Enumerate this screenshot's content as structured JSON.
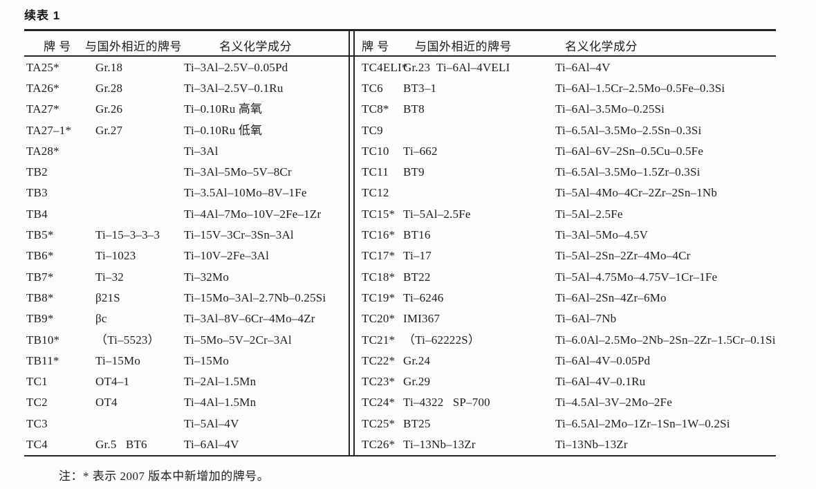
{
  "page": {
    "title": "续表 1",
    "note": "注：* 表示 2007 版本中新增加的牌号。"
  },
  "colors": {
    "paper": "#fdfdfc",
    "text": "#1c1c1c",
    "rule": "#232323"
  },
  "table": {
    "headers": {
      "grade": "牌 号",
      "foreign": "与国外相近的牌号",
      "composition": "名义化学成分"
    },
    "left_rows": [
      {
        "grade": "TA25*",
        "foreign": "Gr.18",
        "composition": "Ti–3Al–2.5V–0.05Pd"
      },
      {
        "grade": "TA26*",
        "foreign": "Gr.28",
        "composition": "Ti–3Al–2.5V–0.1Ru"
      },
      {
        "grade": "TA27*",
        "foreign": "Gr.26",
        "composition": "Ti–0.10Ru 高氧"
      },
      {
        "grade": "TA27–1*",
        "foreign": "Gr.27",
        "composition": "Ti–0.10Ru 低氧"
      },
      {
        "grade": "TA28*",
        "foreign": "",
        "composition": "Ti–3Al"
      },
      {
        "grade": "TB2",
        "foreign": "",
        "composition": "Ti–3Al–5Mo–5V–8Cr"
      },
      {
        "grade": "TB3",
        "foreign": "",
        "composition": "Ti–3.5Al–10Mo–8V–1Fe"
      },
      {
        "grade": "TB4",
        "foreign": "",
        "composition": "Ti–4Al–7Mo–10V–2Fe–1Zr"
      },
      {
        "grade": "TB5*",
        "foreign": "Ti–15–3–3–3",
        "composition": "Ti–15V–3Cr–3Sn–3Al"
      },
      {
        "grade": "TB6*",
        "foreign": "Ti–1023",
        "composition": "Ti–10V–2Fe–3Al"
      },
      {
        "grade": "TB7*",
        "foreign": "Ti–32",
        "composition": "Ti–32Mo"
      },
      {
        "grade": "TB8*",
        "foreign": "β21S",
        "composition": "Ti–15Mo–3Al–2.7Nb–0.25Si"
      },
      {
        "grade": "TB9*",
        "foreign": "βc",
        "composition": "Ti–3Al–8V–6Cr–4Mo–4Zr"
      },
      {
        "grade": "TB10*",
        "foreign": "（Ti–5523）",
        "composition": "Ti–5Mo–5V–2Cr–3Al"
      },
      {
        "grade": "TB11*",
        "foreign": "Ti–15Mo",
        "composition": "Ti–15Mo"
      },
      {
        "grade": "TC1",
        "foreign": "OT4–1",
        "composition": "Ti–2Al–1.5Mn"
      },
      {
        "grade": "TC2",
        "foreign": "OT4",
        "composition": "Ti–4Al–1.5Mn"
      },
      {
        "grade": "TC3",
        "foreign": "",
        "composition": "Ti–5Al–4V"
      },
      {
        "grade": "TC4",
        "foreign": "Gr.5   BT6",
        "composition": "Ti–6Al–4V"
      }
    ],
    "right_rows": [
      {
        "grade": "TC4ELI*",
        "foreign": "Gr.23  Ti–6Al–4VELI",
        "composition": "Ti–6Al–4V"
      },
      {
        "grade": "TC6",
        "foreign": "BT3–1",
        "composition": "Ti–6Al–1.5Cr–2.5Mo–0.5Fe–0.3Si"
      },
      {
        "grade": "TC8*",
        "foreign": "BT8",
        "composition": "Ti–6Al–3.5Mo–0.25Si"
      },
      {
        "grade": "TC9",
        "foreign": "",
        "composition": "Ti–6.5Al–3.5Mo–2.5Sn–0.3Si"
      },
      {
        "grade": "TC10",
        "foreign": "Ti–662",
        "composition": "Ti–6Al–6V–2Sn–0.5Cu–0.5Fe"
      },
      {
        "grade": "TC11",
        "foreign": "BT9",
        "composition": "Ti–6.5Al–3.5Mo–1.5Zr–0.3Si"
      },
      {
        "grade": "TC12",
        "foreign": "",
        "composition": "Ti–5Al–4Mo–4Cr–2Zr–2Sn–1Nb"
      },
      {
        "grade": "TC15*",
        "foreign": "Ti–5Al–2.5Fe",
        "composition": "Ti–5Al–2.5Fe"
      },
      {
        "grade": "TC16*",
        "foreign": "BT16",
        "composition": "Ti–3Al–5Mo–4.5V"
      },
      {
        "grade": "TC17*",
        "foreign": "Ti–17",
        "composition": "Ti–5Al–2Sn–2Zr–4Mo–4Cr"
      },
      {
        "grade": "TC18*",
        "foreign": "BT22",
        "composition": "Ti–5Al–4.75Mo–4.75V–1Cr–1Fe"
      },
      {
        "grade": "TC19*",
        "foreign": "Ti–6246",
        "composition": "Ti–6Al–2Sn–4Zr–6Mo"
      },
      {
        "grade": "TC20*",
        "foreign": "IMI367",
        "composition": "Ti–6Al–7Nb"
      },
      {
        "grade": "TC21*",
        "foreign": "（Ti–62222S）",
        "composition": "Ti–6.0Al–2.5Mo–2Nb–2Sn–2Zr–1.5Cr–0.1Si"
      },
      {
        "grade": "TC22*",
        "foreign": "Gr.24",
        "composition": "Ti–6Al–4V–0.05Pd"
      },
      {
        "grade": "TC23*",
        "foreign": "Gr.29",
        "composition": "Ti–6Al–4V–0.1Ru"
      },
      {
        "grade": "TC24*",
        "foreign": "Ti–4322   SP–700",
        "composition": "Ti–4.5Al–3V–2Mo–2Fe"
      },
      {
        "grade": "TC25*",
        "foreign": "BT25",
        "composition": "Ti–6.5Al–2Mo–1Zr–1Sn–1W–0.2Si"
      },
      {
        "grade": "TC26*",
        "foreign": "Ti–13Nb–13Zr",
        "composition": "Ti–13Nb–13Zr"
      }
    ]
  }
}
